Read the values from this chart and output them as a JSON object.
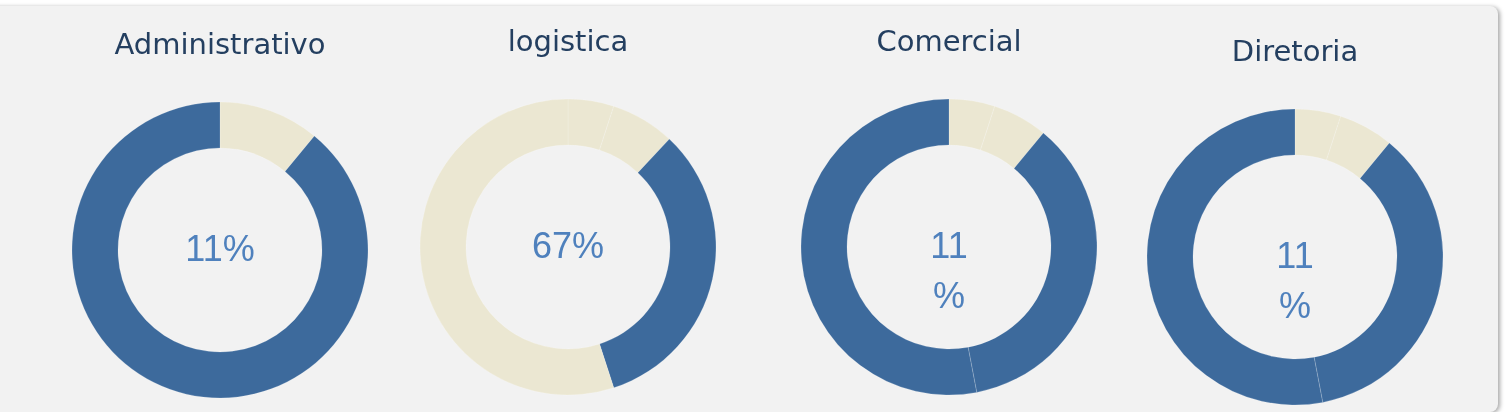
{
  "chart_data": [
    {
      "type": "donut",
      "title": "Administrativo",
      "categories": [
        null,
        null
      ],
      "values": [
        11,
        89
      ],
      "colors": [
        "#ebe7d2",
        "#3d6a9c"
      ],
      "annotations": [
        "11%"
      ]
    },
    {
      "type": "donut",
      "title": "logistica",
      "categories": [
        null,
        null,
        null,
        null
      ],
      "values": [
        5,
        7,
        33,
        55
      ],
      "colors": [
        "#ebe7d2",
        "#ebe7d2",
        "#3d6a9c",
        "#ebe7d2"
      ],
      "annotations": [
        "67%"
      ]
    },
    {
      "type": "donut",
      "title": "Comercial",
      "categories": [
        null,
        null,
        null,
        null
      ],
      "values": [
        5,
        6,
        36,
        53
      ],
      "colors": [
        "#ebe7d2",
        "#ebe7d2",
        "#3d6a9c",
        "#3d6a9c"
      ],
      "annotations": [
        "11\n%"
      ]
    },
    {
      "type": "donut",
      "title": "Diretoria",
      "categories": [
        null,
        null,
        null,
        null
      ],
      "values": [
        5,
        6,
        36,
        53
      ],
      "colors": [
        "#ebe7d2",
        "#ebe7d2",
        "#3d6a9c",
        "#3d6a9c"
      ],
      "annotations": [
        "11\n%"
      ]
    }
  ]
}
